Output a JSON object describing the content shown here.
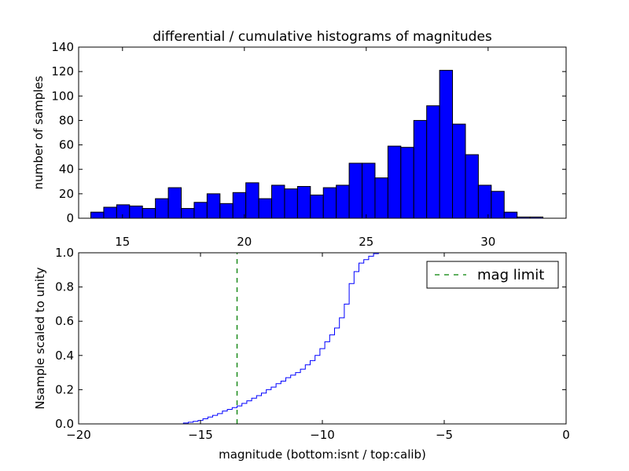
{
  "chart_data": [
    {
      "type": "bar",
      "title": "differential / cumulative histograms of magnitudes",
      "ylabel": "number of samples",
      "xlim": [
        13.2,
        33.2
      ],
      "ylim": [
        0,
        140
      ],
      "x_ticks": [
        "15",
        "20",
        "25",
        "30"
      ],
      "y_ticks": [
        "0",
        "20",
        "40",
        "60",
        "80",
        "100",
        "120",
        "140"
      ],
      "bin_width": 0.53,
      "bin_start": 13.7,
      "values": [
        5,
        9,
        11,
        10,
        8,
        16,
        25,
        8,
        13,
        20,
        12,
        21,
        29,
        16,
        27,
        24,
        26,
        19,
        25,
        27,
        45,
        45,
        33,
        59,
        58,
        80,
        92,
        121,
        77,
        52,
        27,
        22,
        5,
        1,
        1
      ],
      "color": "#0000ff"
    },
    {
      "type": "line",
      "ylabel": "Nsample scaled to unity",
      "xlabel": "magnitude (bottom:isnt / top:calib)",
      "xlim": [
        -20,
        0
      ],
      "ylim": [
        0,
        1
      ],
      "x_ticks": [
        "−20",
        "−15",
        "−10",
        "−5",
        "0"
      ],
      "y_ticks": [
        "0.0",
        "0.2",
        "0.4",
        "0.6",
        "0.8",
        "1.0"
      ],
      "series": [
        {
          "name": "cumulative",
          "color": "#0000ff",
          "step_x": [
            -20,
            -15.7,
            -15.5,
            -15.3,
            -15.1,
            -14.9,
            -14.7,
            -14.5,
            -14.3,
            -14.1,
            -13.9,
            -13.7,
            -13.5,
            -13.3,
            -13.1,
            -12.9,
            -12.7,
            -12.5,
            -12.3,
            -12.1,
            -11.9,
            -11.7,
            -11.5,
            -11.3,
            -11.1,
            -10.9,
            -10.7,
            -10.5,
            -10.3,
            -10.1,
            -9.9,
            -9.7,
            -9.5,
            -9.3,
            -9.1,
            -8.9,
            -8.7,
            -8.5,
            -8.3,
            -8.1,
            -7.9,
            -7.7,
            -7.5
          ],
          "step_y": [
            0,
            0.005,
            0.01,
            0.015,
            0.02,
            0.03,
            0.04,
            0.05,
            0.06,
            0.075,
            0.085,
            0.095,
            0.105,
            0.12,
            0.135,
            0.15,
            0.165,
            0.18,
            0.2,
            0.215,
            0.235,
            0.25,
            0.27,
            0.285,
            0.3,
            0.32,
            0.345,
            0.37,
            0.4,
            0.44,
            0.48,
            0.52,
            0.56,
            0.62,
            0.7,
            0.82,
            0.89,
            0.94,
            0.96,
            0.98,
            0.995,
            1.0,
            1.0
          ]
        },
        {
          "name": "mag limit",
          "color": "#008000",
          "vline_x": -13.5,
          "dashed": true
        }
      ],
      "legend": {
        "label": "mag limit",
        "position": "top-right"
      }
    }
  ]
}
